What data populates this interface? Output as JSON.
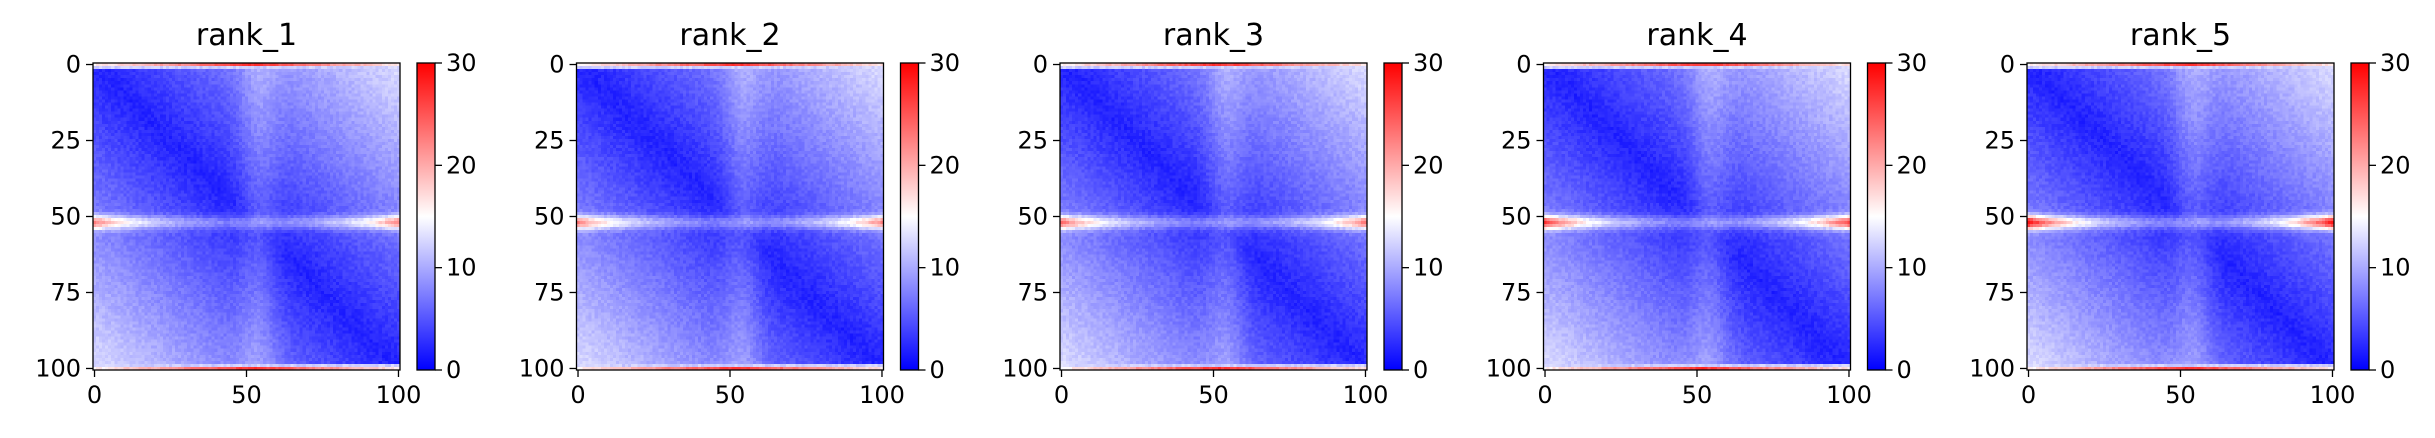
{
  "chart_data": {
    "type": "heatmap",
    "colormap": {
      "name": "bwr",
      "colors": [
        "#0000ff",
        "#ffffff",
        "#ff0000"
      ]
    },
    "grid": false,
    "panels": [
      {
        "title": "rank_1",
        "xlim": [
          0,
          101
        ],
        "ylim": [
          101,
          0
        ],
        "xticks": [
          0,
          50,
          100
        ],
        "yticks": [
          0,
          25,
          50,
          75,
          100
        ],
        "colorbar": {
          "vmin": 0,
          "vmax": 30,
          "ticks": [
            0,
            10,
            20,
            30
          ]
        },
        "band_center": 52,
        "band_peak_value": 15,
        "edge_peak_value": 27
      },
      {
        "title": "rank_2",
        "xlim": [
          0,
          101
        ],
        "ylim": [
          101,
          0
        ],
        "xticks": [
          0,
          50,
          100
        ],
        "yticks": [
          0,
          25,
          50,
          75,
          100
        ],
        "colorbar": {
          "vmin": 0,
          "vmax": 30,
          "ticks": [
            0,
            10,
            20,
            30
          ]
        },
        "band_center": 52,
        "band_peak_value": 15,
        "edge_peak_value": 27
      },
      {
        "title": "rank_3",
        "xlim": [
          0,
          101
        ],
        "ylim": [
          101,
          0
        ],
        "xticks": [
          0,
          50,
          100
        ],
        "yticks": [
          0,
          25,
          50,
          75,
          100
        ],
        "colorbar": {
          "vmin": 0,
          "vmax": 30,
          "ticks": [
            0,
            10,
            20,
            30
          ]
        },
        "band_center": 52,
        "band_peak_value": 16,
        "edge_peak_value": 27
      },
      {
        "title": "rank_4",
        "xlim": [
          0,
          101
        ],
        "ylim": [
          101,
          0
        ],
        "xticks": [
          0,
          50,
          100
        ],
        "yticks": [
          0,
          25,
          50,
          75,
          100
        ],
        "colorbar": {
          "vmin": 0,
          "vmax": 30,
          "ticks": [
            0,
            10,
            20,
            30
          ]
        },
        "band_center": 52,
        "band_peak_value": 19,
        "edge_peak_value": 27
      },
      {
        "title": "rank_5",
        "xlim": [
          0,
          101
        ],
        "ylim": [
          101,
          0
        ],
        "xticks": [
          0,
          50,
          100
        ],
        "yticks": [
          0,
          25,
          50,
          75,
          100
        ],
        "colorbar": {
          "vmin": 0,
          "vmax": 30,
          "ticks": [
            0,
            10,
            20,
            30
          ]
        },
        "band_center": 52,
        "band_peak_value": 22,
        "edge_peak_value": 27
      }
    ]
  }
}
